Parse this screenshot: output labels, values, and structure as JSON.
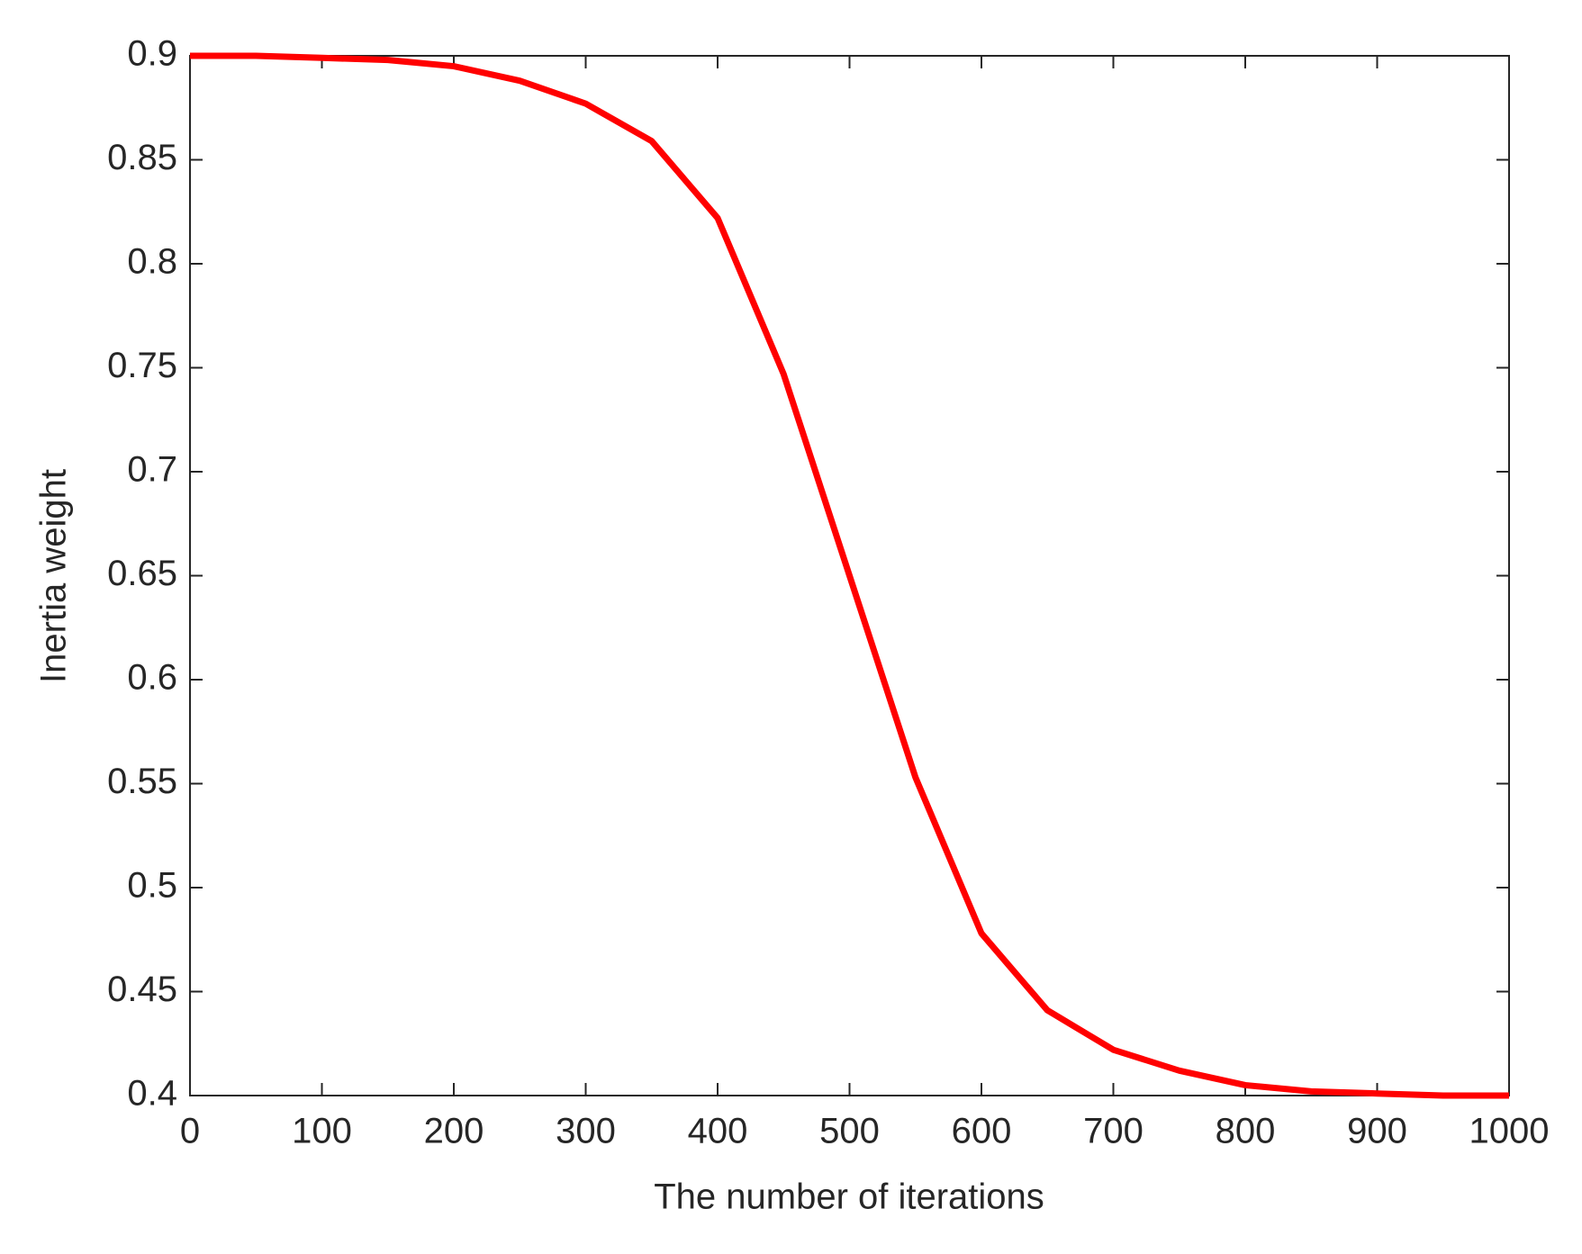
{
  "chart_data": {
    "type": "line",
    "xlabel": "The number of iterations",
    "ylabel": "Inertia weight",
    "x": [
      0,
      50,
      100,
      150,
      200,
      250,
      300,
      350,
      400,
      450,
      500,
      550,
      600,
      650,
      700,
      750,
      800,
      850,
      900,
      950,
      1000
    ],
    "series": [
      {
        "color": "#ff0000",
        "values": [
          0.9,
          0.9,
          0.899,
          0.898,
          0.895,
          0.888,
          0.877,
          0.859,
          0.822,
          0.747,
          0.65,
          0.553,
          0.478,
          0.441,
          0.422,
          0.412,
          0.405,
          0.402,
          0.401,
          0.4,
          0.4
        ]
      }
    ],
    "xlim": [
      0,
      1000
    ],
    "xticks": [
      0,
      100,
      200,
      300,
      400,
      500,
      600,
      700,
      800,
      900,
      1000
    ],
    "ylim": [
      0.4,
      0.9
    ],
    "yticks": [
      0.4,
      0.45,
      0.5,
      0.55,
      0.6,
      0.65,
      0.7,
      0.75,
      0.8,
      0.85,
      0.9
    ],
    "grid": false
  }
}
